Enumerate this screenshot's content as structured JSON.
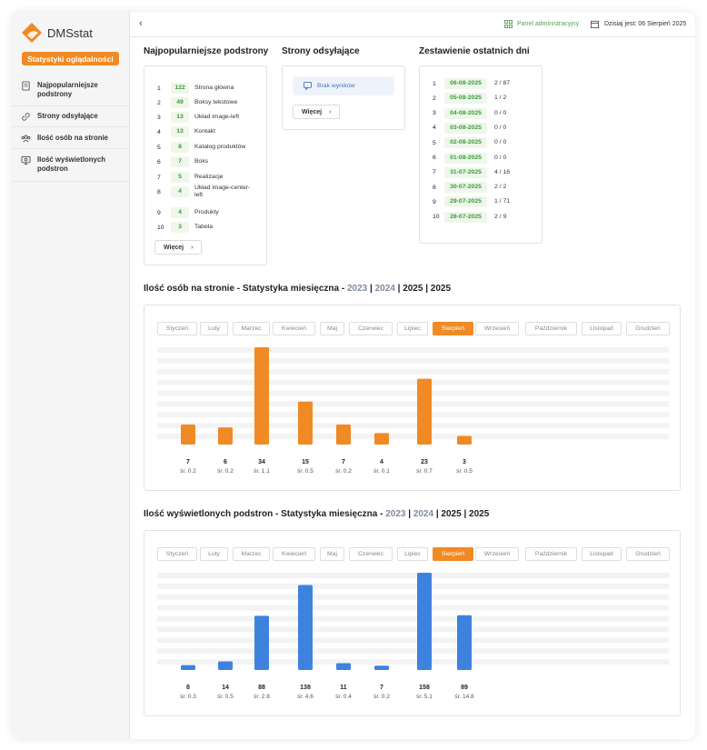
{
  "app": {
    "name": "DMSstat",
    "stats_button": "Statystyki oglądalności"
  },
  "sidebar": {
    "items": [
      {
        "label": "Najpopularniejsze podstrony",
        "icon": "document-icon"
      },
      {
        "label": "Strony odsyłające",
        "icon": "link-icon"
      },
      {
        "label": "Ilość osób na stronie",
        "icon": "users-icon"
      },
      {
        "label": "Ilość wyświetlonych podstron",
        "icon": "monitor-icon"
      }
    ]
  },
  "topbar": {
    "back": "‹",
    "panel_label": "Panel administracyjny",
    "today_label": "Dzisiaj jest: 06 Sierpień 2025"
  },
  "popular": {
    "title": "Najpopularniejsze podstrony",
    "rows": [
      {
        "n": "1",
        "count": "122",
        "label": "Strona główna"
      },
      {
        "n": "2",
        "count": "49",
        "label": "Boksy tekstowe"
      },
      {
        "n": "3",
        "count": "13",
        "label": "Układ image-left"
      },
      {
        "n": "4",
        "count": "13",
        "label": "Kontakt"
      },
      {
        "n": "5",
        "count": "8",
        "label": "Katalog produktów"
      },
      {
        "n": "6",
        "count": "7",
        "label": "Boks"
      },
      {
        "n": "7",
        "count": "5",
        "label": "Realizacje"
      },
      {
        "n": "8",
        "count": "4",
        "label": "Układ image-center-left"
      },
      {
        "n": "9",
        "count": "4",
        "label": "Produkty"
      },
      {
        "n": "10",
        "count": "3",
        "label": "Tabela"
      }
    ],
    "more": "Więcej"
  },
  "referrers": {
    "title": "Strony odsyłające",
    "empty": "Brak wyników",
    "more": "Więcej"
  },
  "recent": {
    "title": "Zestawienie ostatnich dni",
    "rows": [
      {
        "n": "1",
        "date": "06-08-2025",
        "value": "2 / 87"
      },
      {
        "n": "2",
        "date": "05-08-2025",
        "value": "1 / 2"
      },
      {
        "n": "3",
        "date": "04-08-2025",
        "value": "0 / 0"
      },
      {
        "n": "4",
        "date": "03-08-2025",
        "value": "0 / 0"
      },
      {
        "n": "5",
        "date": "02-08-2025",
        "value": "0 / 0"
      },
      {
        "n": "6",
        "date": "01-08-2025",
        "value": "0 / 0"
      },
      {
        "n": "7",
        "date": "31-07-2025",
        "value": "4 / 16"
      },
      {
        "n": "8",
        "date": "30-07-2025",
        "value": "2 / 2"
      },
      {
        "n": "9",
        "date": "29-07-2025",
        "value": "1 / 71"
      },
      {
        "n": "10",
        "date": "28-07-2025",
        "value": "2 / 9"
      }
    ]
  },
  "months": [
    "Styczeń",
    "Luty",
    "Marzec",
    "Kwiecień",
    "Maj",
    "Czerwiec",
    "Lipiec",
    "Sierpień",
    "Wrzesień",
    "Październik",
    "Listopad",
    "Grudzień"
  ],
  "active_month": "Sierpień",
  "visitors": {
    "title": "Ilość osób na stronie - Statystyka miesięczna - ",
    "years": [
      "2023",
      "2024",
      "2025",
      "2025"
    ],
    "sep": " | "
  },
  "pageviews": {
    "title": "Ilość wyświetlonych podstron - Statystyka miesięczna - ",
    "years": [
      "2023",
      "2024",
      "2025",
      "2025"
    ],
    "sep": " | "
  },
  "colors": {
    "accent": "#f08a24",
    "blue": "#3d83dd",
    "green": "#3c9a3c"
  },
  "chart_data": [
    {
      "type": "bar",
      "categories": [
        "Styczeń",
        "Luty",
        "Marzec",
        "Kwiecień",
        "Maj",
        "Czerwiec",
        "Lipiec",
        "Sierpień"
      ],
      "values": [
        7,
        6,
        34,
        15,
        7,
        4,
        23,
        3
      ],
      "labels": [
        "7",
        "6",
        "34",
        "15",
        "7",
        "4",
        "23",
        "3"
      ],
      "averages": [
        "śr. 0.2",
        "śr. 0.2",
        "śr. 1.1",
        "śr. 0.5",
        "śr. 0.2",
        "śr. 0.1",
        "śr. 0.7",
        "śr. 0.5"
      ],
      "ylim": [
        0,
        34
      ],
      "color": "#f08a24"
    },
    {
      "type": "bar",
      "categories": [
        "Styczeń",
        "Luty",
        "Marzec",
        "Kwiecień",
        "Maj",
        "Czerwiec",
        "Lipiec",
        "Sierpień"
      ],
      "values": [
        8,
        14,
        88,
        138,
        11,
        7,
        158,
        89
      ],
      "labels": [
        "8",
        "14",
        "88",
        "138",
        "11",
        "7",
        "158",
        "89"
      ],
      "averages": [
        "śr. 0.3",
        "śr. 0.5",
        "śr. 2.8",
        "śr. 4.6",
        "śr. 0.4",
        "śr. 0.2",
        "śr. 5.1",
        "śr. 14.8"
      ],
      "ylim": [
        0,
        158
      ],
      "color": "#3d83dd"
    }
  ]
}
